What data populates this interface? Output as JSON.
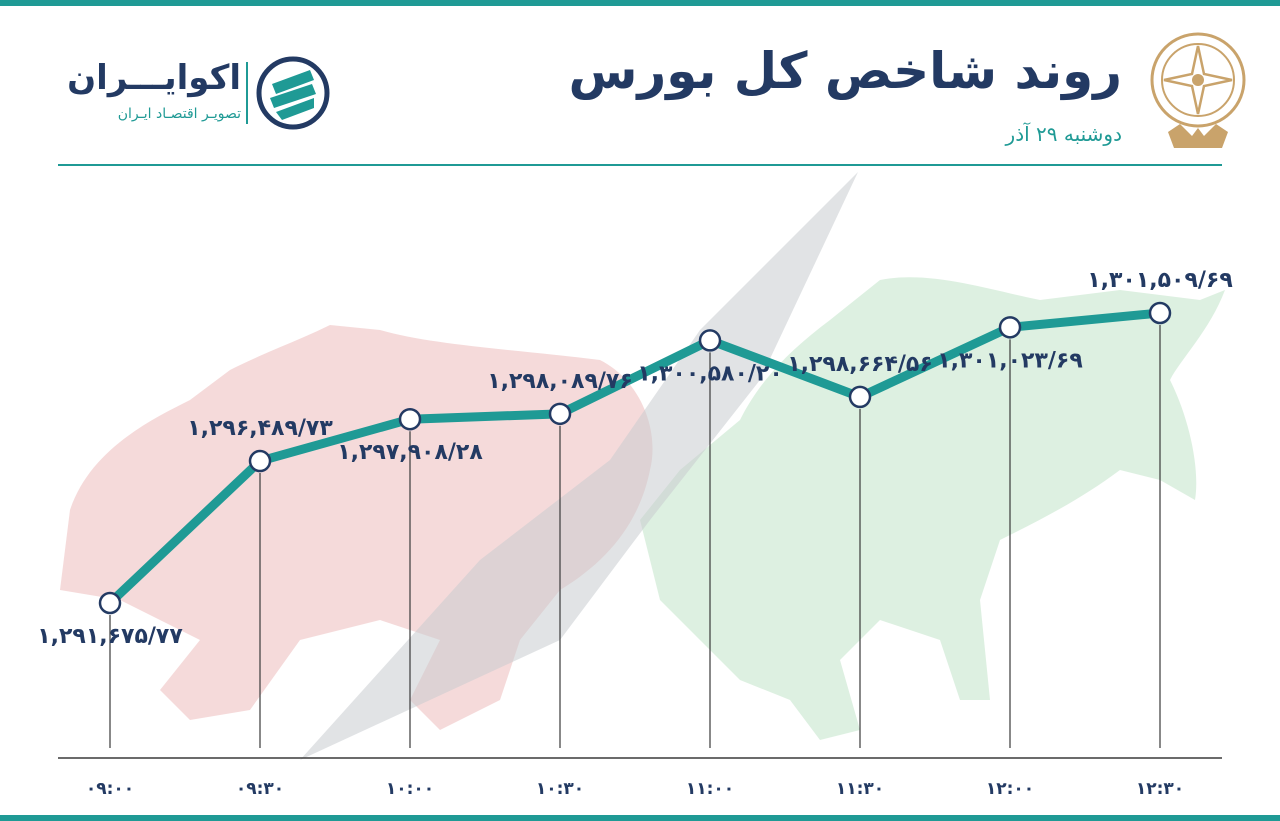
{
  "header": {
    "title": "روند شاخص کل بورس",
    "subtitle": "دوشنبه ۲۹ آذر"
  },
  "brand": {
    "name": "اکوایـــران",
    "tagline": "تصویـر اقتصـاد ایـران"
  },
  "colors": {
    "accent": "#1f9a95",
    "text": "#233a63",
    "bear": "#f3d4d4",
    "bull": "#d4ecd9",
    "arrow": "#c9cccf"
  },
  "chart_data": {
    "type": "line",
    "categories": [
      "۰۹:۰۰",
      "۰۹:۳۰",
      "۱۰:۰۰",
      "۱۰:۳۰",
      "۱۱:۰۰",
      "۱۱:۳۰",
      "۱۲:۰۰",
      "۱۲:۳۰"
    ],
    "values": [
      1291675.77,
      1296489.73,
      1297908.28,
      1298089.76,
      1300580.2,
      1298664.56,
      1301023.69,
      1301509.69
    ],
    "data_labels": [
      "۱,۲۹۱,۶۷۵/۷۷",
      "۱,۲۹۶,۴۸۹/۷۳",
      "۱,۲۹۷,۹۰۸/۲۸",
      "۱,۲۹۸,۰۸۹/۷۶",
      "۱,۳۰۰,۵۸۰/۲۰",
      "۱,۲۹۸,۶۶۴/۵۶",
      "۱,۳۰۱,۰۲۳/۶۹",
      "۱,۳۰۱,۵۰۹/۶۹"
    ],
    "title": "روند شاخص کل بورس",
    "subtitle": "دوشنبه ۲۹ آذر",
    "xlabel": "",
    "ylabel": "",
    "grid": false,
    "legend": "none"
  }
}
